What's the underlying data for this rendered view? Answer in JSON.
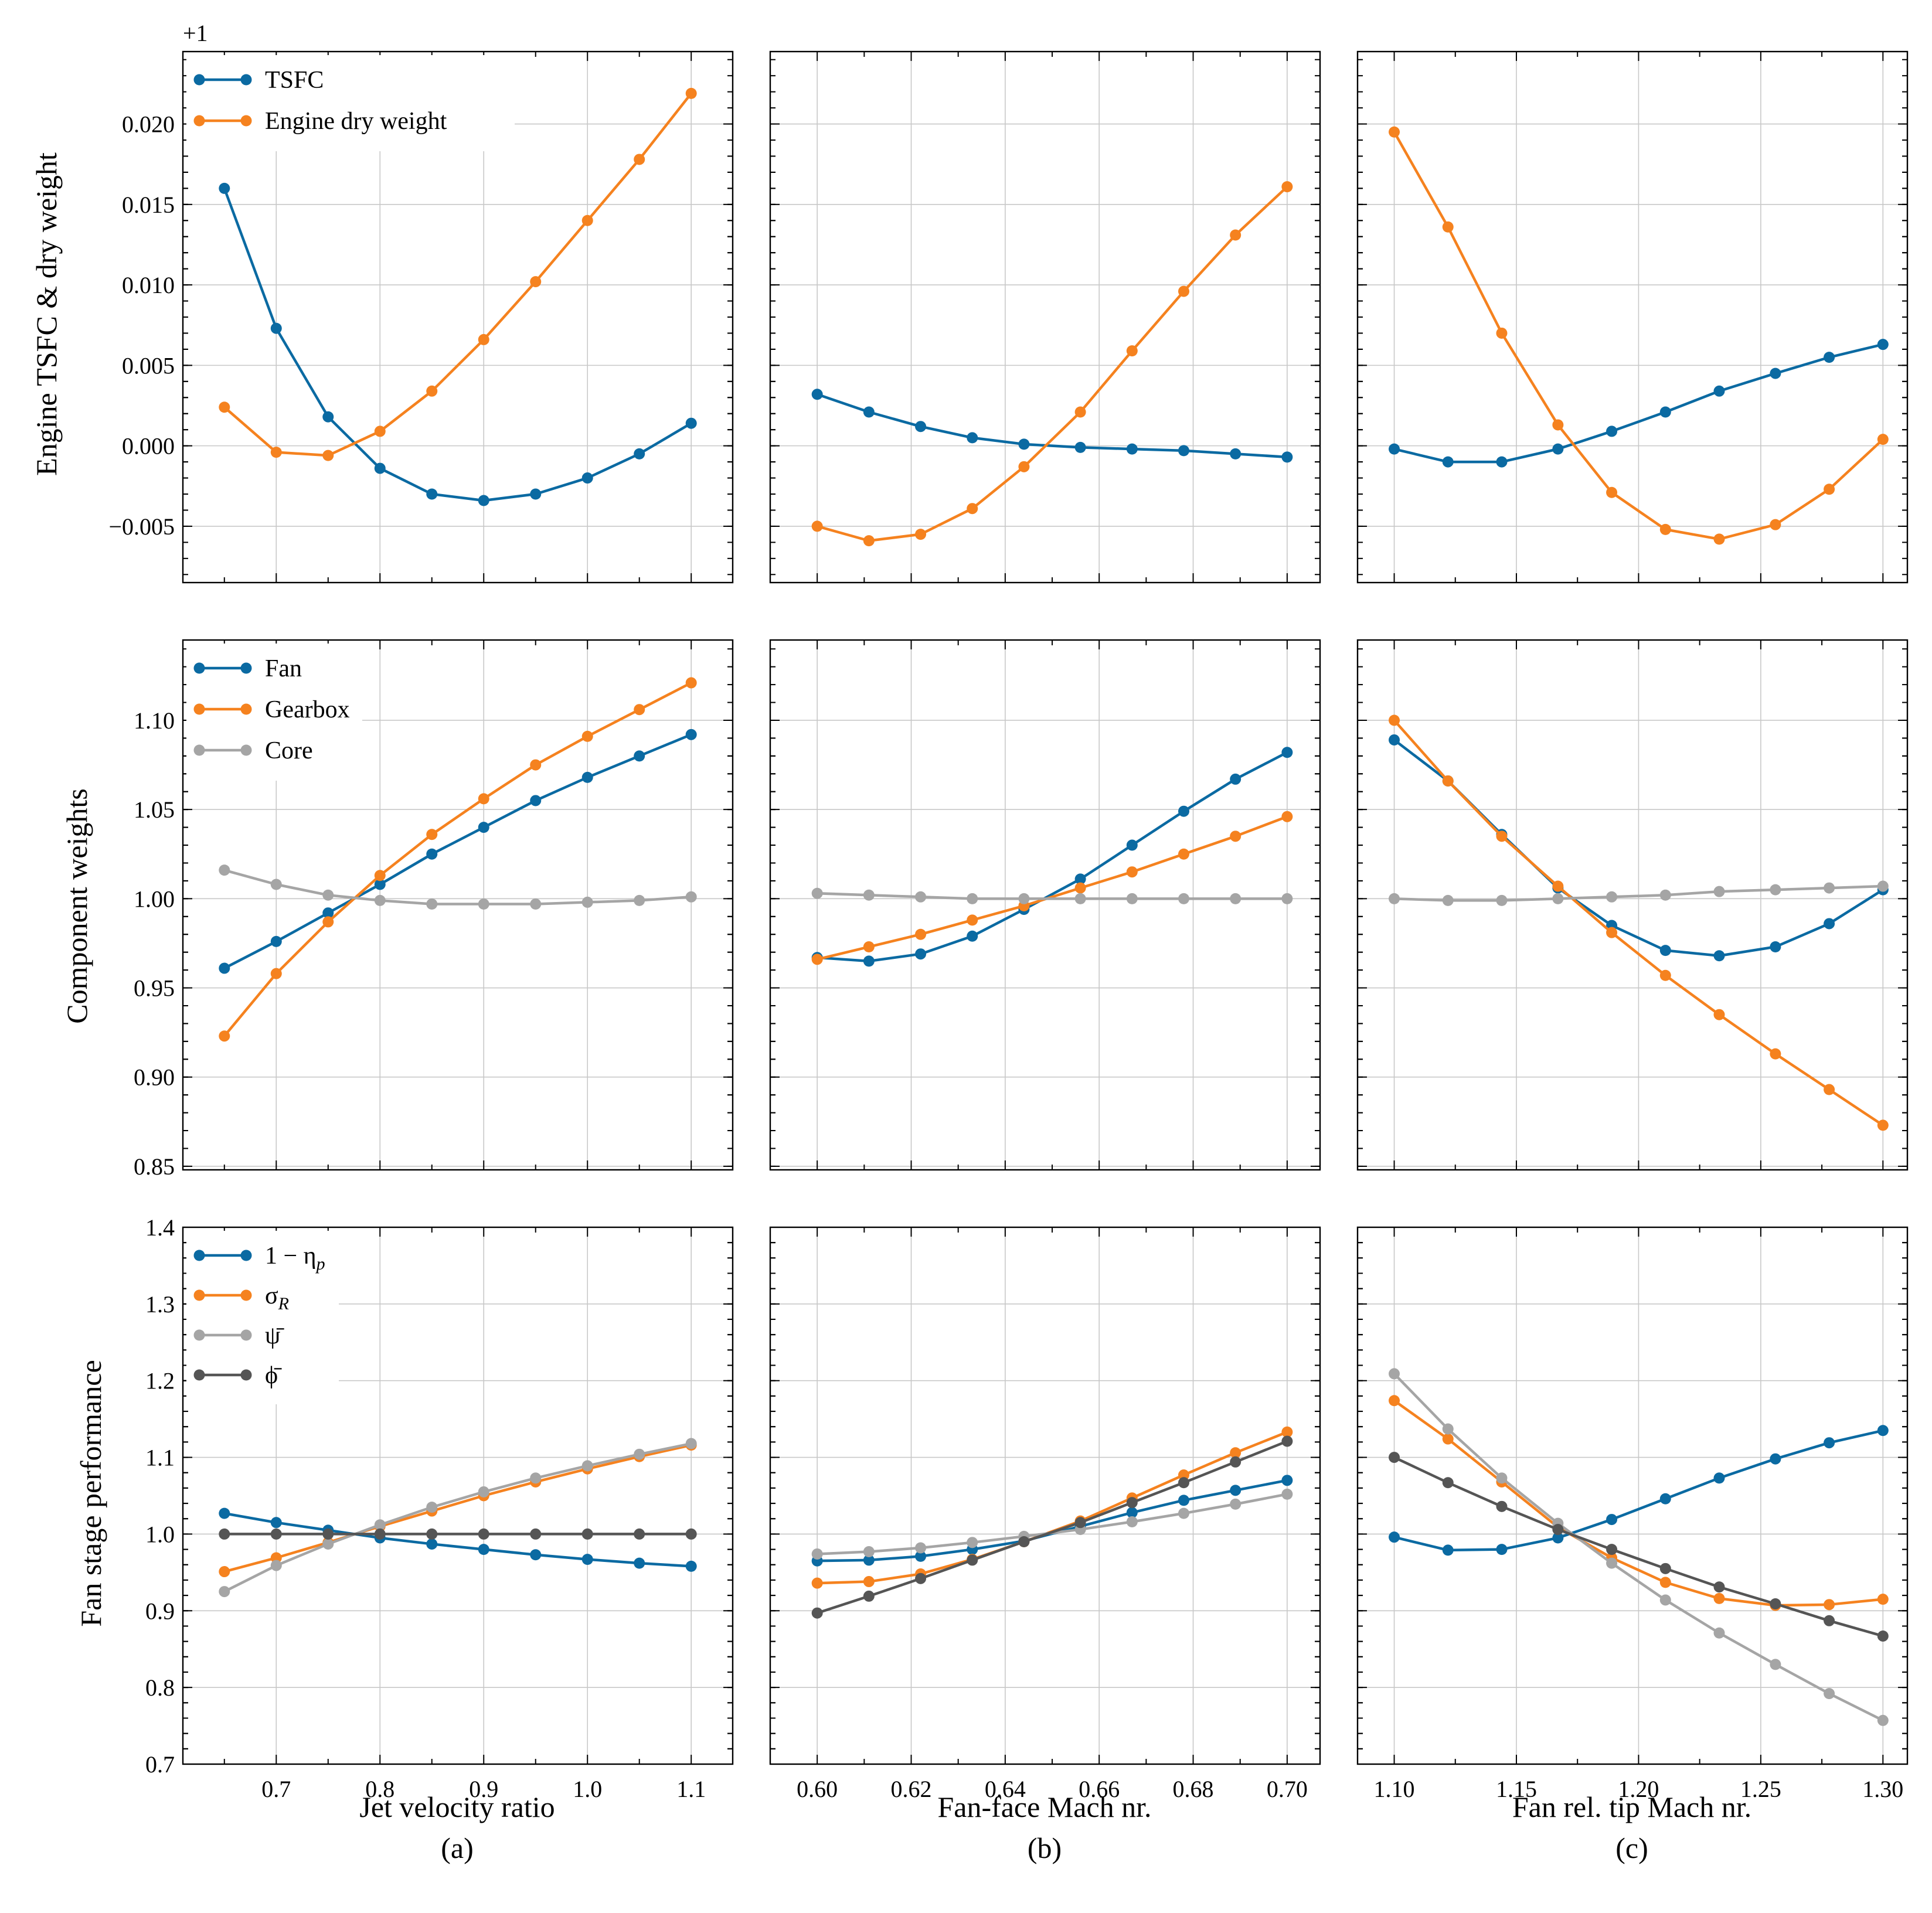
{
  "figure": {
    "col_labels": [
      "(a)",
      "(b)",
      "(c)"
    ],
    "x_titles": [
      "Jet velocity ratio",
      "Fan-face Mach nr.",
      "Fan rel. tip Mach nr."
    ],
    "row_titles": [
      "Engine TSFC & dry weight",
      "Component weights",
      "Fan stage performance"
    ],
    "offset_label": "+1",
    "x_ticks": [
      {
        "values": [
          0.7,
          0.8,
          0.9,
          1.0,
          1.1
        ],
        "labels": [
          "0.7",
          "0.8",
          "0.9",
          "1.0",
          "1.1"
        ],
        "minor": [
          0.65,
          0.75,
          0.85,
          0.95,
          1.05
        ]
      },
      {
        "values": [
          0.6,
          0.62,
          0.64,
          0.66,
          0.68,
          0.7
        ],
        "labels": [
          "0.60",
          "0.62",
          "0.64",
          "0.66",
          "0.68",
          "0.70"
        ],
        "minor": [
          0.61,
          0.63,
          0.65,
          0.67,
          0.69
        ]
      },
      {
        "values": [
          1.1,
          1.15,
          1.2,
          1.25,
          1.3
        ],
        "labels": [
          "1.10",
          "1.15",
          "1.20",
          "1.25",
          "1.30"
        ],
        "minor": [
          1.125,
          1.175,
          1.225,
          1.275
        ]
      }
    ],
    "y_ticks": [
      {
        "values": [
          -0.005,
          0.0,
          0.005,
          0.01,
          0.015,
          0.02
        ],
        "labels": [
          "−0.005",
          "0.000",
          "0.005",
          "0.010",
          "0.015",
          "0.020"
        ]
      },
      {
        "values": [
          0.85,
          0.9,
          0.95,
          1.0,
          1.05,
          1.1
        ],
        "labels": [
          "0.85",
          "0.90",
          "0.95",
          "1.00",
          "1.05",
          "1.10"
        ]
      },
      {
        "values": [
          0.7,
          0.8,
          0.9,
          1.0,
          1.1,
          1.2,
          1.3,
          1.4
        ],
        "labels": [
          "0.7",
          "0.8",
          "0.9",
          "1.0",
          "1.1",
          "1.2",
          "1.3",
          "1.4"
        ]
      }
    ],
    "colors": {
      "blue": "#0b6aa2",
      "orange": "#f5821f",
      "gray": "#a5a5a5",
      "dark": "#555555"
    }
  },
  "chart_data": [
    {
      "type": "line",
      "row": 0,
      "col": 0,
      "xlim": [
        0.61,
        1.14
      ],
      "ylim": [
        -0.0085,
        0.0245
      ],
      "x": [
        0.65,
        0.7,
        0.75,
        0.8,
        0.85,
        0.9,
        0.95,
        1.0,
        1.05,
        1.1
      ],
      "series": [
        {
          "name": "TSFC",
          "color": "blue",
          "values": [
            0.016,
            0.0073,
            0.0018,
            -0.0014,
            -0.003,
            -0.0034,
            -0.003,
            -0.002,
            -0.0005,
            0.0014
          ]
        },
        {
          "name": "Engine dry weight",
          "color": "orange",
          "values": [
            0.0024,
            -0.0004,
            -0.0006,
            0.0009,
            0.0034,
            0.0066,
            0.0102,
            0.014,
            0.0178,
            0.0219
          ]
        }
      ]
    },
    {
      "type": "line",
      "row": 0,
      "col": 1,
      "xlim": [
        0.59,
        0.707
      ],
      "ylim": [
        -0.0085,
        0.0245
      ],
      "x": [
        0.6,
        0.611,
        0.622,
        0.633,
        0.644,
        0.656,
        0.667,
        0.678,
        0.689,
        0.7
      ],
      "series": [
        {
          "name": "TSFC",
          "color": "blue",
          "values": [
            0.0032,
            0.0021,
            0.0012,
            0.0005,
            0.0001,
            -0.0001,
            -0.0002,
            -0.0003,
            -0.0005,
            -0.0007
          ]
        },
        {
          "name": "Engine dry weight",
          "color": "orange",
          "values": [
            -0.005,
            -0.0059,
            -0.0055,
            -0.0039,
            -0.0013,
            0.0021,
            0.0059,
            0.0096,
            0.0131,
            0.0161
          ]
        }
      ]
    },
    {
      "type": "line",
      "row": 0,
      "col": 2,
      "xlim": [
        1.085,
        1.31
      ],
      "ylim": [
        -0.0085,
        0.0245
      ],
      "x": [
        1.1,
        1.122,
        1.144,
        1.167,
        1.189,
        1.211,
        1.233,
        1.256,
        1.278,
        1.3
      ],
      "series": [
        {
          "name": "TSFC",
          "color": "blue",
          "values": [
            -0.0002,
            -0.001,
            -0.001,
            -0.0002,
            0.0009,
            0.0021,
            0.0034,
            0.0045,
            0.0055,
            0.0063
          ]
        },
        {
          "name": "Engine dry weight",
          "color": "orange",
          "values": [
            0.0195,
            0.0136,
            0.007,
            0.0013,
            -0.0029,
            -0.0052,
            -0.0058,
            -0.0049,
            -0.0027,
            0.0004
          ]
        }
      ]
    },
    {
      "type": "line",
      "row": 1,
      "col": 0,
      "xlim": [
        0.61,
        1.14
      ],
      "ylim": [
        0.848,
        1.145
      ],
      "x": [
        0.65,
        0.7,
        0.75,
        0.8,
        0.85,
        0.9,
        0.95,
        1.0,
        1.05,
        1.1
      ],
      "series": [
        {
          "name": "Fan",
          "color": "blue",
          "values": [
            0.961,
            0.976,
            0.992,
            1.008,
            1.025,
            1.04,
            1.055,
            1.068,
            1.08,
            1.092
          ]
        },
        {
          "name": "Gearbox",
          "color": "orange",
          "values": [
            0.923,
            0.958,
            0.987,
            1.013,
            1.036,
            1.056,
            1.075,
            1.091,
            1.106,
            1.121
          ]
        },
        {
          "name": "Core",
          "color": "gray",
          "values": [
            1.016,
            1.008,
            1.002,
            0.999,
            0.997,
            0.997,
            0.997,
            0.998,
            0.999,
            1.001
          ]
        }
      ]
    },
    {
      "type": "line",
      "row": 1,
      "col": 1,
      "xlim": [
        0.59,
        0.707
      ],
      "ylim": [
        0.848,
        1.145
      ],
      "x": [
        0.6,
        0.611,
        0.622,
        0.633,
        0.644,
        0.656,
        0.667,
        0.678,
        0.689,
        0.7
      ],
      "series": [
        {
          "name": "Fan",
          "color": "blue",
          "values": [
            0.967,
            0.965,
            0.969,
            0.979,
            0.994,
            1.011,
            1.03,
            1.049,
            1.067,
            1.082
          ]
        },
        {
          "name": "Gearbox",
          "color": "orange",
          "values": [
            0.966,
            0.973,
            0.98,
            0.988,
            0.996,
            1.006,
            1.015,
            1.025,
            1.035,
            1.046
          ]
        },
        {
          "name": "Core",
          "color": "gray",
          "values": [
            1.003,
            1.002,
            1.001,
            1.0,
            1.0,
            1.0,
            1.0,
            1.0,
            1.0,
            1.0
          ]
        }
      ]
    },
    {
      "type": "line",
      "row": 1,
      "col": 2,
      "xlim": [
        1.085,
        1.31
      ],
      "ylim": [
        0.848,
        1.145
      ],
      "x": [
        1.1,
        1.122,
        1.144,
        1.167,
        1.189,
        1.211,
        1.233,
        1.256,
        1.278,
        1.3
      ],
      "series": [
        {
          "name": "Fan",
          "color": "blue",
          "values": [
            1.089,
            1.066,
            1.036,
            1.006,
            0.985,
            0.971,
            0.968,
            0.973,
            0.986,
            1.005
          ]
        },
        {
          "name": "Gearbox",
          "color": "orange",
          "values": [
            1.1,
            1.066,
            1.035,
            1.007,
            0.981,
            0.957,
            0.935,
            0.913,
            0.893,
            0.873
          ]
        },
        {
          "name": "Core",
          "color": "gray",
          "values": [
            1.0,
            0.999,
            0.999,
            1.0,
            1.001,
            1.002,
            1.004,
            1.005,
            1.006,
            1.007
          ]
        }
      ]
    },
    {
      "type": "line",
      "row": 2,
      "col": 0,
      "xlim": [
        0.61,
        1.14
      ],
      "ylim": [
        0.7,
        1.4
      ],
      "x": [
        0.65,
        0.7,
        0.75,
        0.8,
        0.85,
        0.9,
        0.95,
        1.0,
        1.05,
        1.1
      ],
      "series": [
        {
          "name": "1 − ηp",
          "color": "blue",
          "values": [
            1.027,
            1.015,
            1.005,
            0.995,
            0.987,
            0.98,
            0.973,
            0.967,
            0.962,
            0.958
          ]
        },
        {
          "name": "σR",
          "color": "orange",
          "values": [
            0.951,
            0.969,
            0.989,
            1.01,
            1.03,
            1.05,
            1.068,
            1.085,
            1.101,
            1.116
          ]
        },
        {
          "name": "ψ̄",
          "color": "gray",
          "values": [
            0.925,
            0.959,
            0.987,
            1.012,
            1.035,
            1.055,
            1.073,
            1.089,
            1.104,
            1.118
          ]
        },
        {
          "name": "ϕ̄",
          "color": "dark",
          "values": [
            1.0,
            1.0,
            1.0,
            1.0,
            1.0,
            1.0,
            1.0,
            1.0,
            1.0,
            1.0
          ]
        }
      ]
    },
    {
      "type": "line",
      "row": 2,
      "col": 1,
      "xlim": [
        0.59,
        0.707
      ],
      "ylim": [
        0.7,
        1.4
      ],
      "x": [
        0.6,
        0.611,
        0.622,
        0.633,
        0.644,
        0.656,
        0.667,
        0.678,
        0.689,
        0.7
      ],
      "series": [
        {
          "name": "1 − ηp",
          "color": "blue",
          "values": [
            0.965,
            0.966,
            0.971,
            0.98,
            0.991,
            1.01,
            1.028,
            1.044,
            1.057,
            1.07
          ]
        },
        {
          "name": "σR",
          "color": "orange",
          "values": [
            0.936,
            0.938,
            0.948,
            0.967,
            0.99,
            1.017,
            1.047,
            1.077,
            1.106,
            1.133
          ]
        },
        {
          "name": "ψ̄",
          "color": "gray",
          "values": [
            0.974,
            0.977,
            0.982,
            0.989,
            0.997,
            1.006,
            1.016,
            1.027,
            1.039,
            1.052
          ]
        },
        {
          "name": "ϕ̄",
          "color": "dark",
          "values": [
            0.897,
            0.919,
            0.942,
            0.966,
            0.99,
            1.015,
            1.041,
            1.067,
            1.094,
            1.121
          ]
        }
      ]
    },
    {
      "type": "line",
      "row": 2,
      "col": 2,
      "xlim": [
        1.085,
        1.31
      ],
      "ylim": [
        0.7,
        1.4
      ],
      "x": [
        1.1,
        1.122,
        1.144,
        1.167,
        1.189,
        1.211,
        1.233,
        1.256,
        1.278,
        1.3
      ],
      "series": [
        {
          "name": "1 − ηp",
          "color": "blue",
          "values": [
            0.996,
            0.979,
            0.98,
            0.995,
            1.019,
            1.046,
            1.073,
            1.098,
            1.119,
            1.135
          ]
        },
        {
          "name": "σR",
          "color": "orange",
          "values": [
            1.174,
            1.124,
            1.068,
            1.009,
            0.969,
            0.937,
            0.916,
            0.907,
            0.908,
            0.915
          ]
        },
        {
          "name": "ψ̄",
          "color": "gray",
          "values": [
            1.209,
            1.137,
            1.073,
            1.014,
            0.962,
            0.914,
            0.871,
            0.83,
            0.792,
            0.757
          ]
        },
        {
          "name": "ϕ̄",
          "color": "dark",
          "values": [
            1.1,
            1.067,
            1.036,
            1.006,
            0.98,
            0.955,
            0.931,
            0.909,
            0.887,
            0.867
          ]
        }
      ]
    }
  ]
}
